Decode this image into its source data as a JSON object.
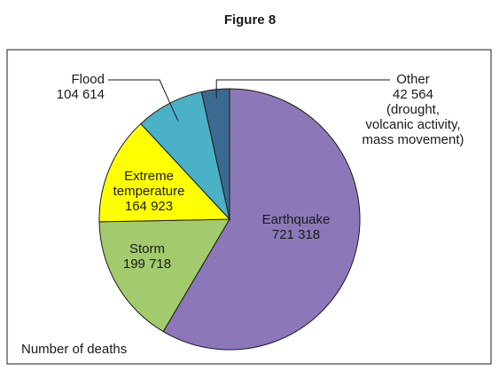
{
  "chart_data": {
    "type": "pie",
    "title": "Figure 8",
    "caption": "Number of deaths",
    "slices": [
      {
        "name": "Earthquake",
        "value": 721318,
        "value_label": "721 318",
        "color": "#8c78b8"
      },
      {
        "name": "Storm",
        "value": 199718,
        "value_label": "199 718",
        "color": "#a3cb6e"
      },
      {
        "name": "Extreme temperature",
        "value": 164923,
        "value_label": "164 923",
        "color": "#ffff00"
      },
      {
        "name": "Flood",
        "value": 104614,
        "value_label": "104 614",
        "color": "#4ab1c6"
      },
      {
        "name": "Other",
        "value": 42564,
        "value_label": "42 564",
        "color": "#3a6a91",
        "note": "(drought, volcanic activity, mass movement)"
      }
    ],
    "label_lines": {
      "extreme_temperature": [
        "Extreme",
        "temperature"
      ],
      "other_note": [
        "(drought,",
        "volcanic activity,",
        "mass movement)"
      ]
    },
    "legend": "none"
  }
}
